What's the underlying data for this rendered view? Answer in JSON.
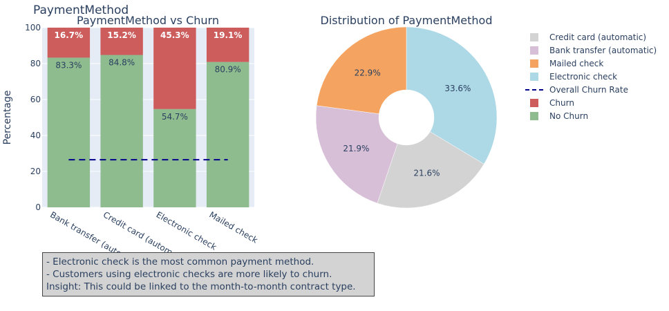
{
  "figure": {
    "title": "PaymentMethod"
  },
  "chart_data": [
    {
      "type": "bar",
      "stacked": true,
      "title": "PaymentMethod vs Churn",
      "xlabel": "",
      "ylabel": "Percentage",
      "ylim": [
        0,
        100
      ],
      "yticks": [
        0,
        20,
        40,
        60,
        80,
        100
      ],
      "categories": [
        "Bank transfer (automatic)",
        "Credit card (automatic)",
        "Electronic check",
        "Mailed check"
      ],
      "series": [
        {
          "name": "No Churn",
          "color": "#8fbc8f",
          "values": [
            83.3,
            84.8,
            54.7,
            80.9
          ],
          "labels": [
            "83.3%",
            "84.8%",
            "54.7%",
            "80.9%"
          ]
        },
        {
          "name": "Churn",
          "color": "#cd5c5c",
          "values": [
            16.7,
            15.2,
            45.3,
            19.1
          ],
          "labels": [
            "16.7%",
            "15.2%",
            "45.3%",
            "19.1%"
          ]
        }
      ],
      "reference_line": {
        "name": "Overall Churn Rate",
        "value": 26.5,
        "color": "#00008b",
        "style": "dash"
      },
      "grid": true
    },
    {
      "type": "pie",
      "donut": true,
      "title": "Distribution of PaymentMethod",
      "slices": [
        {
          "name": "Electronic check",
          "value": 33.6,
          "label": "33.6%",
          "color": "#add8e6"
        },
        {
          "name": "Credit card (automatic)",
          "value": 21.6,
          "label": "21.6%",
          "color": "#d3d3d3"
        },
        {
          "name": "Bank transfer (automatic)",
          "value": 21.9,
          "label": "21.9%",
          "color": "#d8bfd8"
        },
        {
          "name": "Mailed check",
          "value": 22.9,
          "label": "22.9%",
          "color": "#f4a460"
        }
      ]
    }
  ],
  "legend": {
    "placement": "right",
    "items": [
      {
        "name": "Credit card (automatic)",
        "color": "#d3d3d3",
        "kind": "box"
      },
      {
        "name": "Bank transfer (automatic)",
        "color": "#d8bfd8",
        "kind": "box"
      },
      {
        "name": "Mailed check",
        "color": "#f4a460",
        "kind": "box"
      },
      {
        "name": "Electronic check",
        "color": "#add8e6",
        "kind": "box"
      },
      {
        "name": "Overall Churn Rate",
        "color": "#00008b",
        "kind": "dash"
      },
      {
        "name": "Churn",
        "color": "#cd5c5c",
        "kind": "box"
      },
      {
        "name": "No Churn",
        "color": "#8fbc8f",
        "kind": "box"
      }
    ]
  },
  "insights": {
    "lines": [
      "- Electronic check is the most common payment method.",
      "- Customers using electronic checks are more likely to churn.",
      "Insight: This could be linked to the month-to-month contract type."
    ]
  }
}
